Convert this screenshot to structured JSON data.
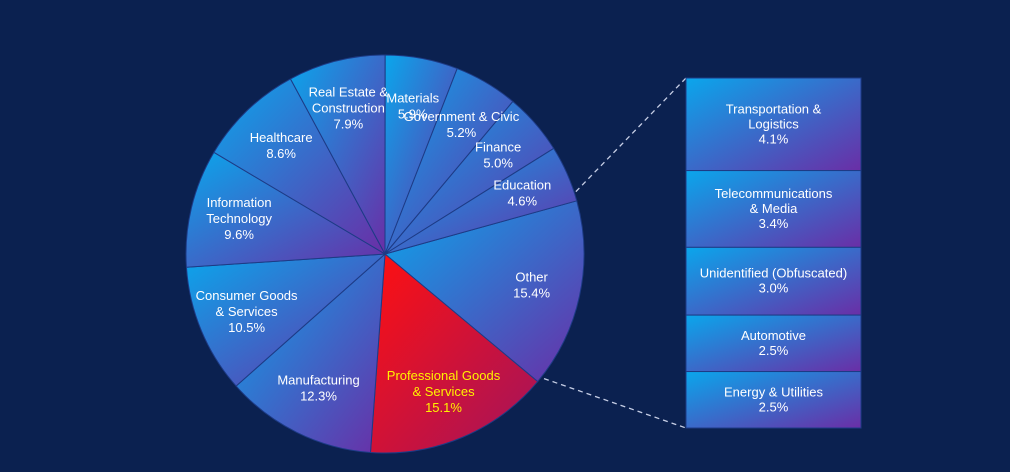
{
  "chart_data": {
    "type": "pie",
    "title": "",
    "highlight_color": "#fff200",
    "slice_colors": {
      "default_start": "#0aa6ec",
      "default_end": "#6a2ea6",
      "highlight_start": "#ff1010",
      "highlight_end": "#a1145e"
    },
    "slices": [
      {
        "label": [
          "Other"
        ],
        "value": 15.4,
        "value_label": "15.4%",
        "highlight": false
      },
      {
        "label": [
          "Professional Goods",
          "& Services"
        ],
        "value": 15.1,
        "value_label": "15.1%",
        "highlight": true
      },
      {
        "label": [
          "Manufacturing"
        ],
        "value": 12.3,
        "value_label": "12.3%",
        "highlight": false
      },
      {
        "label": [
          "Consumer Goods",
          "& Services"
        ],
        "value": 10.5,
        "value_label": "10.5%",
        "highlight": false
      },
      {
        "label": [
          "Information",
          "Technology"
        ],
        "value": 9.6,
        "value_label": "9.6%",
        "highlight": false
      },
      {
        "label": [
          "Healthcare"
        ],
        "value": 8.6,
        "value_label": "8.6%",
        "highlight": false
      },
      {
        "label": [
          "Real Estate &",
          "Construction"
        ],
        "value": 7.9,
        "value_label": "7.9%",
        "highlight": false
      },
      {
        "label": [
          "Materials"
        ],
        "value": 5.9,
        "value_label": "5.9%",
        "highlight": false
      },
      {
        "label": [
          "Government & Civic"
        ],
        "value": 5.2,
        "value_label": "5.2%",
        "highlight": false
      },
      {
        "label": [
          "Finance"
        ],
        "value": 5.0,
        "value_label": "5.0%",
        "highlight": false
      },
      {
        "label": [
          "Education"
        ],
        "value": 4.6,
        "value_label": "4.6%",
        "highlight": false
      }
    ],
    "breakdown_of": "Other",
    "breakdown": [
      {
        "label": [
          "Transportation &",
          "Logistics"
        ],
        "value": 4.1,
        "value_label": "4.1%"
      },
      {
        "label": [
          "Telecommunications",
          "& Media"
        ],
        "value": 3.4,
        "value_label": "3.4%"
      },
      {
        "label": [
          "Unidentified (Obfuscated)"
        ],
        "value": 3.0,
        "value_label": "3.0%"
      },
      {
        "label": [
          "Automotive"
        ],
        "value": 2.5,
        "value_label": "2.5%"
      },
      {
        "label": [
          "Energy & Utilities"
        ],
        "value": 2.5,
        "value_label": "2.5%"
      }
    ]
  }
}
